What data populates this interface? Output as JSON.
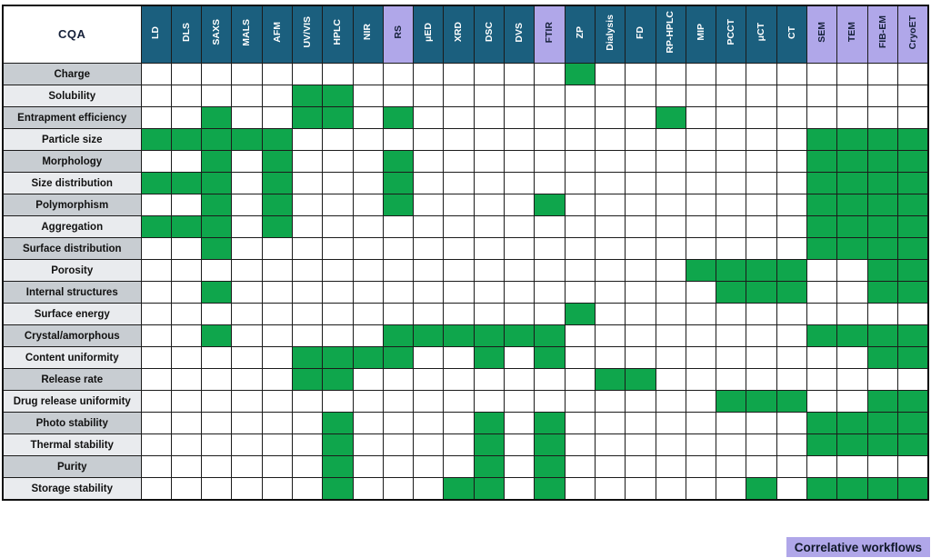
{
  "legend": {
    "label": "Correlative workflows"
  },
  "colors": {
    "header_teal": "#1b5f7e",
    "header_purple": "#b0a7e9",
    "mark_green": "#0fa64c",
    "row_label_dark": "#c8cdd2",
    "row_label_light": "#e9ebee",
    "grid_line": "#1b1b1b"
  },
  "chart_data": {
    "type": "heatmap",
    "corner_label": "CQA",
    "columns": [
      "LD",
      "DLS",
      "SAXS",
      "MALS",
      "AFM",
      "UV/VIS",
      "HPLC",
      "NIR",
      "RS",
      "μED",
      "XRD",
      "DSC",
      "DVS",
      "FTIR",
      "ZP",
      "Dialysis",
      "FD",
      "RP-HPLC",
      "MIP",
      "PCCT",
      "μCT",
      "CT",
      "SEM",
      "TEM",
      "FIB-EM",
      "CryoET"
    ],
    "correlative_columns": [
      "RS",
      "FTIR",
      "SEM",
      "TEM",
      "FIB-EM",
      "CryoET"
    ],
    "rows": [
      "Charge",
      "Solubility",
      "Entrapment efficiency",
      "Particle size",
      "Morphology",
      "Size distribution",
      "Polymorphism",
      "Aggregation",
      "Surface distribution",
      "Porosity",
      "Internal structures",
      "Surface energy",
      "Crystal/amorphous",
      "Content uniformity",
      "Release rate",
      "Drug release uniformity",
      "Photo stability",
      "Thermal stability",
      "Purity",
      "Storage stability"
    ],
    "marks": {
      "Charge": [
        "ZP"
      ],
      "Solubility": [
        "UV/VIS",
        "HPLC"
      ],
      "Entrapment efficiency": [
        "SAXS",
        "UV/VIS",
        "HPLC",
        "RS",
        "RP-HPLC"
      ],
      "Particle size": [
        "LD",
        "DLS",
        "SAXS",
        "MALS",
        "AFM",
        "SEM",
        "TEM",
        "FIB-EM",
        "CryoET"
      ],
      "Morphology": [
        "SAXS",
        "AFM",
        "RS",
        "SEM",
        "TEM",
        "FIB-EM",
        "CryoET"
      ],
      "Size distribution": [
        "LD",
        "DLS",
        "SAXS",
        "AFM",
        "RS",
        "SEM",
        "TEM",
        "FIB-EM",
        "CryoET"
      ],
      "Polymorphism": [
        "SAXS",
        "AFM",
        "RS",
        "FTIR",
        "SEM",
        "TEM",
        "FIB-EM",
        "CryoET"
      ],
      "Aggregation": [
        "LD",
        "DLS",
        "SAXS",
        "AFM",
        "SEM",
        "TEM",
        "FIB-EM",
        "CryoET"
      ],
      "Surface distribution": [
        "SAXS",
        "SEM",
        "TEM",
        "FIB-EM",
        "CryoET"
      ],
      "Porosity": [
        "MIP",
        "PCCT",
        "μCT",
        "CT",
        "FIB-EM",
        "CryoET"
      ],
      "Internal structures": [
        "SAXS",
        "PCCT",
        "μCT",
        "CT",
        "FIB-EM",
        "CryoET"
      ],
      "Surface energy": [
        "ZP"
      ],
      "Crystal/amorphous": [
        "SAXS",
        "RS",
        "μED",
        "XRD",
        "DSC",
        "DVS",
        "FTIR",
        "SEM",
        "TEM",
        "FIB-EM",
        "CryoET"
      ],
      "Content uniformity": [
        "UV/VIS",
        "HPLC",
        "NIR",
        "RS",
        "DSC",
        "FTIR",
        "FIB-EM",
        "CryoET"
      ],
      "Release rate": [
        "UV/VIS",
        "HPLC",
        "Dialysis",
        "FD"
      ],
      "Drug release uniformity": [
        "PCCT",
        "μCT",
        "CT",
        "FIB-EM",
        "CryoET"
      ],
      "Photo stability": [
        "HPLC",
        "DSC",
        "FTIR",
        "SEM",
        "TEM",
        "FIB-EM",
        "CryoET"
      ],
      "Thermal stability": [
        "HPLC",
        "DSC",
        "FTIR",
        "SEM",
        "TEM",
        "FIB-EM",
        "CryoET"
      ],
      "Purity": [
        "HPLC",
        "DSC",
        "FTIR"
      ],
      "Storage stability": [
        "HPLC",
        "XRD",
        "DSC",
        "FTIR",
        "μCT",
        "SEM",
        "TEM",
        "FIB-EM",
        "CryoET"
      ]
    }
  }
}
